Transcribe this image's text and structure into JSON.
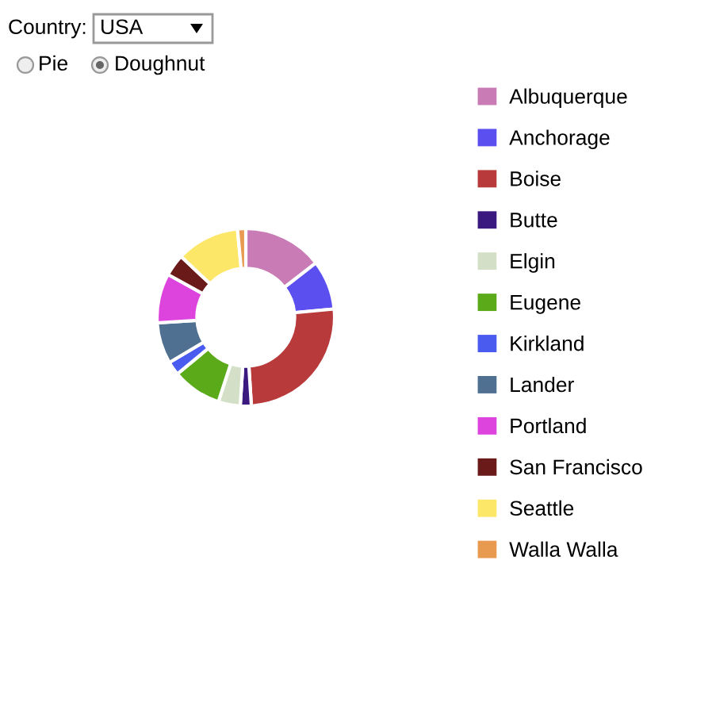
{
  "chart_data": {
    "type": "donut",
    "legend": "right",
    "annotations": [
      "Country:",
      "USA",
      "Pie",
      "Doughnut"
    ],
    "categories": [
      "Albuquerque",
      "Anchorage",
      "Boise",
      "Butte",
      "Elgin",
      "Eugene",
      "Kirkland",
      "Lander",
      "Portland",
      "San Francisco",
      "Seattle",
      "Walla Walla"
    ],
    "values": [
      14.5,
      9,
      25.5,
      2,
      4,
      9,
      2.5,
      7.5,
      9,
      4,
      11.5,
      1.5
    ],
    "colors": [
      "#c87bb5",
      "#5b4ff0",
      "#b83a3a",
      "#3b1a80",
      "#d3dfc6",
      "#5aaa1a",
      "#4a5cf0",
      "#4f7090",
      "#dd44dd",
      "#6b1a1a",
      "#fde768",
      "#e89a50"
    ]
  }
}
